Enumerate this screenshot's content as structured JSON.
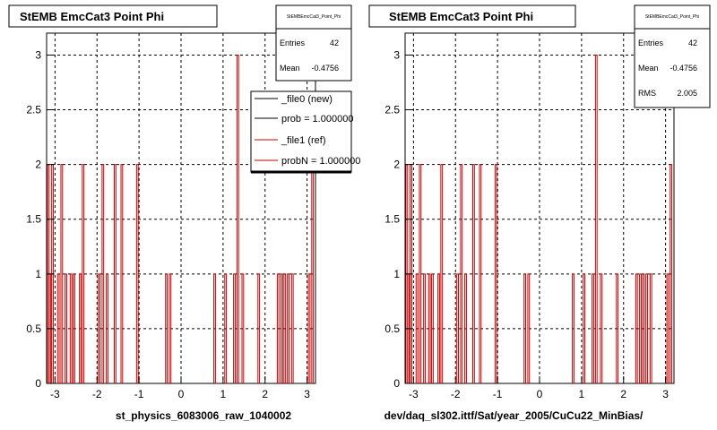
{
  "chart_data": [
    {
      "type": "histogram",
      "title": "StEMB EmcCat3 Point Phi",
      "xlabel": "st_physics_6083006_raw_1040002",
      "ylabel": "",
      "xlim": [
        -3.2,
        3.2
      ],
      "ylim": [
        0,
        3.2
      ],
      "x_ticks": [
        "-3",
        "-2",
        "-1",
        "0",
        "1",
        "2",
        "3"
      ],
      "y_ticks": [
        "0",
        "0.5",
        "1",
        "1.5",
        "2",
        "2.5",
        "3"
      ],
      "grid": true,
      "stats": {
        "name": "StEMBEmcCat3_Point_Phi",
        "entries_label": "Entries",
        "entries": "42",
        "mean_label": "Mean",
        "mean": "-0.4756"
      },
      "legend": {
        "placement": "top-right",
        "entries": [
          "_file0 (new)",
          "prob = 1.000000",
          "_file1 (ref)",
          "probN = 1.000000"
        ]
      },
      "series": [
        {
          "bins": [
            [
              -3.16,
              2
            ],
            [
              -3.12,
              1
            ],
            [
              -3.06,
              2
            ],
            [
              -2.92,
              1
            ],
            [
              -2.84,
              2
            ],
            [
              -2.74,
              1
            ],
            [
              -2.62,
              1
            ],
            [
              -2.55,
              1
            ],
            [
              -2.4,
              1
            ],
            [
              -2.33,
              2
            ],
            [
              -1.95,
              1
            ],
            [
              -1.86,
              2
            ],
            [
              -1.76,
              1
            ],
            [
              -1.57,
              2
            ],
            [
              -1.41,
              2
            ],
            [
              -1.04,
              2
            ],
            [
              -0.35,
              1
            ],
            [
              -0.26,
              1
            ],
            [
              0.8,
              1
            ],
            [
              1.06,
              1
            ],
            [
              1.27,
              1
            ],
            [
              1.35,
              3
            ],
            [
              1.47,
              1
            ],
            [
              1.85,
              1
            ],
            [
              2.31,
              1
            ],
            [
              2.4,
              1
            ],
            [
              2.47,
              1
            ],
            [
              2.55,
              1
            ],
            [
              2.65,
              1
            ],
            [
              3.05,
              1
            ],
            [
              3.13,
              2
            ]
          ]
        }
      ]
    },
    {
      "type": "histogram",
      "title": "StEMB EmcCat3 Point Phi",
      "xlabel": "dev/daq_sl302.ittf/Sat/year_2005/CuCu22_MinBias/",
      "ylabel": "",
      "xlim": [
        -3.2,
        3.2
      ],
      "ylim": [
        0,
        3.2
      ],
      "x_ticks": [
        "-3",
        "-2",
        "-1",
        "0",
        "1",
        "2",
        "3"
      ],
      "y_ticks": [
        "0",
        "0.5",
        "1",
        "1.5",
        "2",
        "2.5",
        "3"
      ],
      "grid": true,
      "stats": {
        "name": "StEMBEmcCat3_Point_Phi",
        "entries_label": "Entries",
        "entries": "42",
        "mean_label": "Mean",
        "mean": "-0.4756",
        "rms_label": "RMS",
        "rms": "2.005"
      },
      "series": [
        {
          "bins": [
            [
              -3.16,
              2
            ],
            [
              -3.12,
              1
            ],
            [
              -3.06,
              2
            ],
            [
              -2.92,
              1
            ],
            [
              -2.84,
              2
            ],
            [
              -2.74,
              1
            ],
            [
              -2.62,
              1
            ],
            [
              -2.55,
              1
            ],
            [
              -2.4,
              1
            ],
            [
              -2.33,
              2
            ],
            [
              -1.95,
              1
            ],
            [
              -1.86,
              2
            ],
            [
              -1.76,
              1
            ],
            [
              -1.57,
              2
            ],
            [
              -1.41,
              2
            ],
            [
              -1.04,
              2
            ],
            [
              -0.35,
              1
            ],
            [
              -0.26,
              1
            ],
            [
              0.8,
              1
            ],
            [
              1.06,
              1
            ],
            [
              1.27,
              1
            ],
            [
              1.35,
              3
            ],
            [
              1.47,
              1
            ],
            [
              1.85,
              1
            ],
            [
              2.31,
              1
            ],
            [
              2.4,
              1
            ],
            [
              2.47,
              1
            ],
            [
              2.55,
              1
            ],
            [
              2.65,
              1
            ],
            [
              3.05,
              1
            ],
            [
              3.13,
              2
            ]
          ]
        }
      ]
    }
  ]
}
